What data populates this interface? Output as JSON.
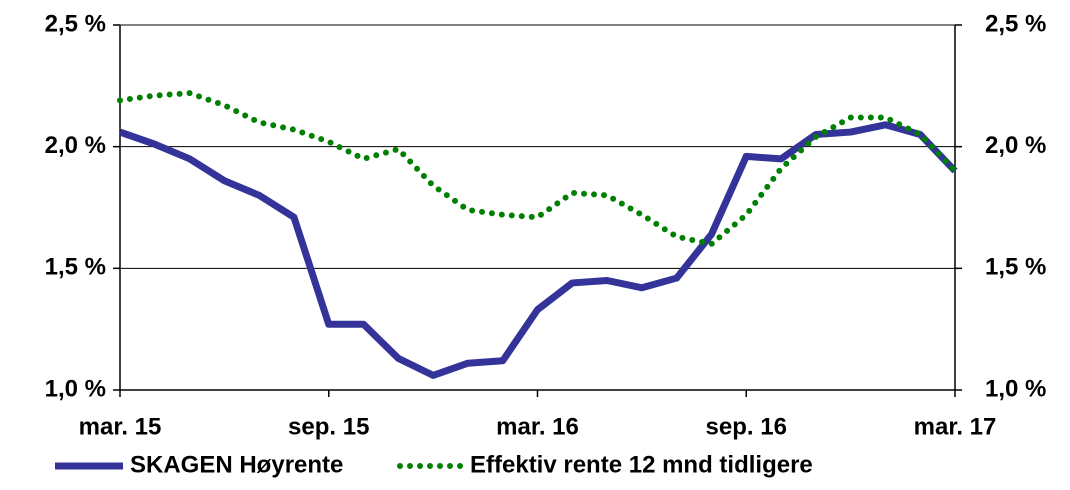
{
  "chart_data": {
    "type": "line",
    "categories": [
      "mar. 15",
      null,
      null,
      null,
      null,
      null,
      "sep. 15",
      null,
      null,
      null,
      null,
      null,
      "mar. 16",
      null,
      null,
      null,
      null,
      null,
      "sep. 16",
      null,
      null,
      null,
      null,
      null,
      "mar. 17"
    ],
    "series": [
      {
        "name": "SKAGEN Høyrente",
        "color": "#333399",
        "style": "solid",
        "values": [
          2.06,
          2.01,
          1.95,
          1.86,
          1.8,
          1.71,
          1.27,
          1.27,
          1.13,
          1.06,
          1.11,
          1.12,
          1.33,
          1.44,
          1.45,
          1.42,
          1.46,
          1.64,
          1.96,
          1.95,
          2.05,
          2.06,
          2.09,
          2.05,
          1.9
        ]
      },
      {
        "name": "Effektiv rente 12 mnd tidligere",
        "color": "#008000",
        "style": "dotted",
        "values": [
          2.19,
          2.21,
          2.22,
          2.17,
          2.1,
          2.07,
          2.02,
          1.95,
          1.99,
          1.84,
          1.74,
          1.72,
          1.71,
          1.81,
          1.8,
          1.72,
          1.63,
          1.6,
          1.72,
          1.91,
          2.04,
          2.12,
          2.12,
          2.05,
          1.9
        ]
      }
    ],
    "ylim": [
      1.0,
      2.5
    ],
    "yticks": [
      {
        "value": 1.0,
        "label": "1,0 %"
      },
      {
        "value": 1.5,
        "label": "1,5 %"
      },
      {
        "value": 2.0,
        "label": "2,0 %"
      },
      {
        "value": 2.5,
        "label": "2,5 %"
      }
    ],
    "y2lim": [
      1.0,
      2.5
    ],
    "y2ticks": [
      {
        "value": 1.0,
        "label": "1,0 %"
      },
      {
        "value": 1.5,
        "label": "1,5 %"
      },
      {
        "value": 2.0,
        "label": "2,0 %"
      },
      {
        "value": 2.5,
        "label": "2,5 %"
      }
    ],
    "grid": true,
    "legend": "bottom"
  }
}
